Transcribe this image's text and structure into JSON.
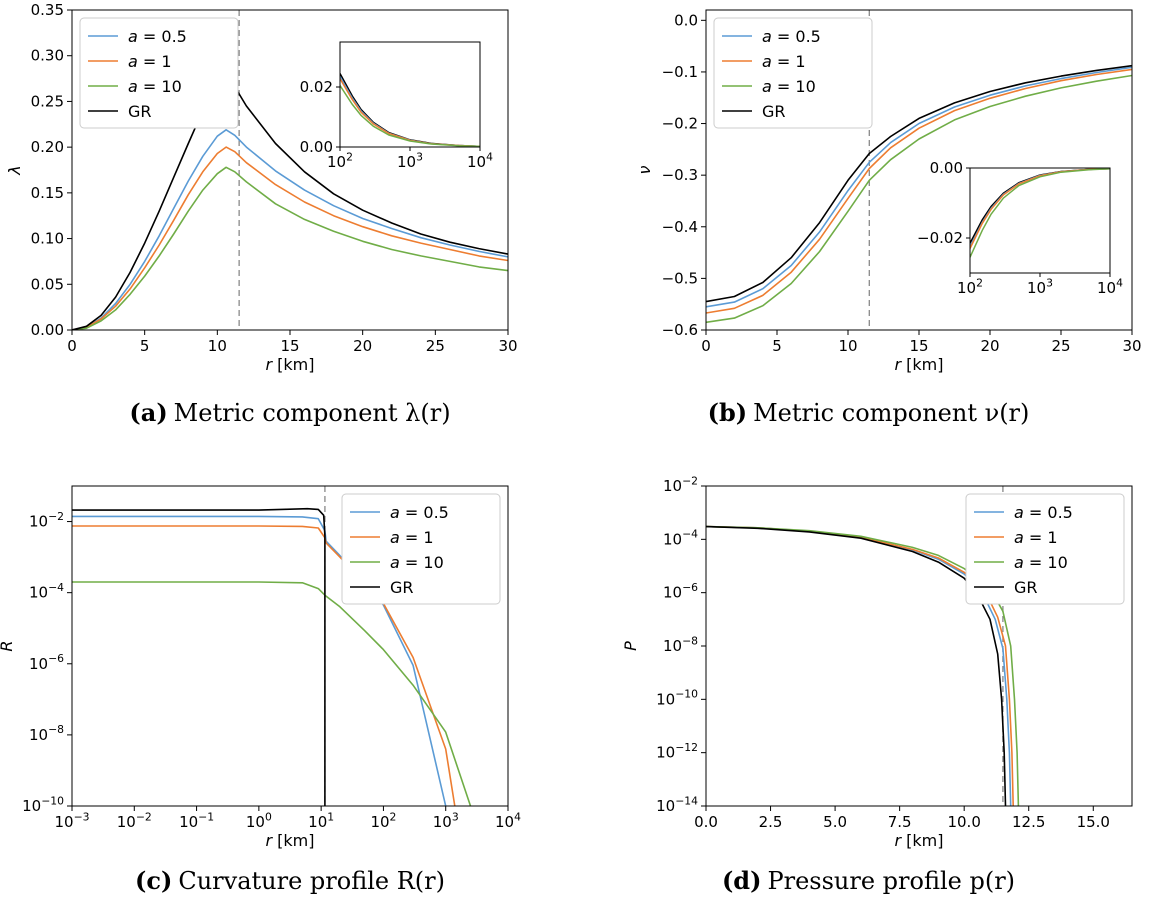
{
  "colors": {
    "a05": "#5b9bd5",
    "a1": "#ed7d31",
    "a10": "#70ad47",
    "gr": "#000000",
    "vline": "#888888"
  },
  "captions": [
    {
      "tag": "(a)",
      "text": "Metric component λ(r)"
    },
    {
      "tag": "(b)",
      "text": "Metric component ν(r)"
    },
    {
      "tag": "(c)",
      "text": "Curvature profile R(r)"
    },
    {
      "tag": "(d)",
      "text": "Pressure profile p(r)"
    }
  ],
  "chart_data": [
    {
      "type": "line",
      "xlabel": "r [km]",
      "ylabel": "λ",
      "xlim": [
        0,
        30
      ],
      "ylim": [
        0,
        0.35
      ],
      "xticks": [
        "0",
        "5",
        "10",
        "15",
        "20",
        "25",
        "30"
      ],
      "yticks": [
        "0.00",
        "0.05",
        "0.10",
        "0.15",
        "0.20",
        "0.25",
        "0.30",
        "0.35"
      ],
      "vline_x": 11.5,
      "legend": "top-left",
      "series": [
        {
          "name": "a = 0.5",
          "color": "a05",
          "x": [
            0,
            1,
            2,
            3,
            4,
            5,
            6,
            7,
            8,
            9,
            10,
            10.6,
            11.2,
            12,
            14,
            16,
            18,
            20,
            22,
            24,
            26,
            28,
            30
          ],
          "y": [
            0,
            0.003,
            0.013,
            0.029,
            0.05,
            0.075,
            0.103,
            0.133,
            0.163,
            0.19,
            0.212,
            0.219,
            0.213,
            0.2,
            0.174,
            0.153,
            0.136,
            0.122,
            0.111,
            0.101,
            0.093,
            0.086,
            0.08
          ]
        },
        {
          "name": "a = 1",
          "color": "a1",
          "x": [
            0,
            1,
            2,
            3,
            4,
            5,
            6,
            7,
            8,
            9,
            10,
            10.6,
            11.2,
            12,
            14,
            16,
            18,
            20,
            22,
            24,
            26,
            28,
            30
          ],
          "y": [
            0,
            0.003,
            0.012,
            0.026,
            0.045,
            0.068,
            0.093,
            0.12,
            0.148,
            0.173,
            0.193,
            0.2,
            0.195,
            0.183,
            0.159,
            0.14,
            0.125,
            0.113,
            0.103,
            0.095,
            0.088,
            0.081,
            0.076
          ]
        },
        {
          "name": "a = 10",
          "color": "a10",
          "x": [
            0,
            1,
            2,
            3,
            4,
            5,
            6,
            7,
            8,
            9,
            10,
            10.6,
            11.2,
            12,
            14,
            16,
            18,
            20,
            22,
            24,
            26,
            28,
            30
          ],
          "y": [
            0,
            0.002,
            0.01,
            0.022,
            0.039,
            0.059,
            0.081,
            0.105,
            0.13,
            0.153,
            0.171,
            0.178,
            0.173,
            0.162,
            0.138,
            0.121,
            0.108,
            0.097,
            0.088,
            0.081,
            0.075,
            0.069,
            0.065
          ]
        },
        {
          "name": "GR",
          "color": "gr",
          "x": [
            0,
            1,
            2,
            3,
            4,
            5,
            6,
            7,
            8,
            9,
            10,
            10.6,
            11.2,
            12,
            14,
            16,
            18,
            20,
            22,
            24,
            26,
            28,
            30
          ],
          "y": [
            0,
            0.004,
            0.016,
            0.036,
            0.063,
            0.095,
            0.13,
            0.167,
            0.204,
            0.24,
            0.269,
            0.277,
            0.266,
            0.245,
            0.204,
            0.173,
            0.149,
            0.131,
            0.117,
            0.105,
            0.096,
            0.089,
            0.083
          ]
        }
      ],
      "inset": {
        "xscale": "log",
        "xlim": [
          100,
          10000
        ],
        "ylim": [
          0,
          0.035
        ],
        "xticks": [
          "10^2",
          "10^3",
          "10^4"
        ],
        "yticks": [
          "0.00",
          "0.02"
        ],
        "series": [
          {
            "color": "gr",
            "x": [
              100,
              150,
              200,
              300,
              500,
              1000,
              2000,
              5000,
              10000
            ],
            "y": [
              0.0245,
              0.017,
              0.0125,
              0.0082,
              0.0048,
              0.0024,
              0.0012,
              0.0005,
              0.0002
            ]
          },
          {
            "color": "a05",
            "x": [
              100,
              150,
              200,
              300,
              500,
              1000,
              2000,
              5000,
              10000
            ],
            "y": [
              0.0235,
              0.0163,
              0.012,
              0.0079,
              0.0046,
              0.0023,
              0.0011,
              0.0005,
              0.0002
            ]
          },
          {
            "color": "a1",
            "x": [
              100,
              150,
              200,
              300,
              500,
              1000,
              2000,
              5000,
              10000
            ],
            "y": [
              0.0228,
              0.0158,
              0.0116,
              0.0077,
              0.0045,
              0.0022,
              0.0011,
              0.0005,
              0.0002
            ]
          },
          {
            "color": "a10",
            "x": [
              100,
              150,
              200,
              300,
              500,
              1000,
              2000,
              5000,
              10000
            ],
            "y": [
              0.0205,
              0.0142,
              0.0105,
              0.0069,
              0.004,
              0.002,
              0.001,
              0.0004,
              0.0002
            ]
          }
        ]
      }
    },
    {
      "type": "line",
      "xlabel": "r [km]",
      "ylabel": "ν",
      "xlim": [
        0,
        30
      ],
      "ylim": [
        -0.6,
        0.02
      ],
      "xticks": [
        "0",
        "5",
        "10",
        "15",
        "20",
        "25",
        "30"
      ],
      "yticks": [
        "−0.6",
        "−0.5",
        "−0.4",
        "−0.3",
        "−0.2",
        "−0.1",
        "0.0"
      ],
      "ytick_values": [
        -0.6,
        -0.5,
        -0.4,
        -0.3,
        -0.2,
        -0.1,
        0.0
      ],
      "vline_x": 11.5,
      "legend": "top-left",
      "series": [
        {
          "name": "a = 0.5",
          "color": "a05",
          "x": [
            0,
            2,
            4,
            6,
            8,
            10,
            11.5,
            13,
            15,
            17.5,
            20,
            22.5,
            25,
            27.5,
            30
          ],
          "y": [
            -0.555,
            -0.546,
            -0.52,
            -0.475,
            -0.41,
            -0.33,
            -0.275,
            -0.237,
            -0.2,
            -0.168,
            -0.145,
            -0.127,
            -0.113,
            -0.101,
            -0.091
          ]
        },
        {
          "name": "a = 1",
          "color": "a1",
          "x": [
            0,
            2,
            4,
            6,
            8,
            10,
            11.5,
            13,
            15,
            17.5,
            20,
            22.5,
            25,
            27.5,
            30
          ],
          "y": [
            -0.567,
            -0.558,
            -0.533,
            -0.488,
            -0.424,
            -0.345,
            -0.287,
            -0.247,
            -0.209,
            -0.175,
            -0.151,
            -0.132,
            -0.117,
            -0.105,
            -0.095
          ]
        },
        {
          "name": "a = 10",
          "color": "a10",
          "x": [
            0,
            2,
            4,
            6,
            8,
            10,
            11.5,
            13,
            15,
            17.5,
            20,
            22.5,
            25,
            27.5,
            30
          ],
          "y": [
            -0.585,
            -0.577,
            -0.553,
            -0.51,
            -0.448,
            -0.37,
            -0.31,
            -0.27,
            -0.23,
            -0.193,
            -0.167,
            -0.147,
            -0.131,
            -0.118,
            -0.107
          ]
        },
        {
          "name": "GR",
          "color": "gr",
          "x": [
            0,
            2,
            4,
            6,
            8,
            10,
            11.5,
            13,
            15,
            17.5,
            20,
            22.5,
            25,
            27.5,
            30
          ],
          "y": [
            -0.545,
            -0.535,
            -0.508,
            -0.46,
            -0.392,
            -0.31,
            -0.258,
            -0.225,
            -0.19,
            -0.16,
            -0.138,
            -0.121,
            -0.108,
            -0.097,
            -0.088
          ]
        }
      ],
      "inset": {
        "xscale": "log",
        "xlim": [
          100,
          10000
        ],
        "ylim": [
          -0.03,
          0
        ],
        "xticks": [
          "10^2",
          "10^3",
          "10^4"
        ],
        "yticks": [
          "0.00",
          "−0.02"
        ],
        "ytick_values": [
          0,
          -0.02
        ],
        "series": [
          {
            "color": "gr",
            "x": [
              100,
              150,
              200,
              300,
              500,
              1000,
              2000,
              5000,
              10000
            ],
            "y": [
              -0.0215,
              -0.0148,
              -0.011,
              -0.0072,
              -0.0042,
              -0.002,
              -0.001,
              -0.0004,
              -0.0002
            ]
          },
          {
            "color": "a05",
            "x": [
              100,
              150,
              200,
              300,
              500,
              1000,
              2000,
              5000,
              10000
            ],
            "y": [
              -0.0225,
              -0.0155,
              -0.0115,
              -0.0075,
              -0.0044,
              -0.0021,
              -0.0011,
              -0.0004,
              -0.0002
            ]
          },
          {
            "color": "a1",
            "x": [
              100,
              150,
              200,
              300,
              500,
              1000,
              2000,
              5000,
              10000
            ],
            "y": [
              -0.023,
              -0.0158,
              -0.0118,
              -0.0077,
              -0.0045,
              -0.0022,
              -0.0011,
              -0.0004,
              -0.0002
            ]
          },
          {
            "color": "a10",
            "x": [
              100,
              150,
              200,
              300,
              500,
              1000,
              2000,
              5000,
              10000
            ],
            "y": [
              -0.0255,
              -0.0178,
              -0.0132,
              -0.0086,
              -0.005,
              -0.0025,
              -0.0012,
              -0.0005,
              -0.0002
            ]
          }
        ]
      }
    },
    {
      "type": "line",
      "xscale": "log",
      "yscale": "log",
      "xlabel": "r [km]",
      "ylabel": "R",
      "xlim": [
        0.001,
        10000
      ],
      "ylim": [
        1e-10,
        0.1
      ],
      "xticks": [
        "10^-3",
        "10^-2",
        "10^-1",
        "10^0",
        "10^1",
        "10^2",
        "10^3",
        "10^4"
      ],
      "yticks": [
        "10^-10",
        "10^-8",
        "10^-6",
        "10^-4",
        "10^-2"
      ],
      "vline_x": 11.5,
      "legend": "top-right",
      "series": [
        {
          "name": "a = 0.5",
          "color": "a05",
          "x": [
            0.001,
            0.01,
            0.1,
            1,
            5,
            9,
            11.5,
            12,
            20,
            50,
            100,
            300,
            1000
          ],
          "y": [
            0.014,
            0.014,
            0.014,
            0.014,
            0.0135,
            0.012,
            0.0055,
            0.0028,
            0.0011,
            0.00018,
            4.5e-05,
            9e-07,
            1e-10
          ]
        },
        {
          "name": "a = 1",
          "color": "a1",
          "x": [
            0.001,
            0.01,
            0.1,
            1,
            5,
            9,
            11.5,
            12,
            20,
            50,
            100,
            300,
            1000,
            1400
          ],
          "y": [
            0.0075,
            0.0075,
            0.0075,
            0.0075,
            0.0073,
            0.0066,
            0.0035,
            0.0025,
            0.001,
            0.00018,
            5e-05,
            1.5e-06,
            4e-09,
            1e-10
          ]
        },
        {
          "name": "a = 10",
          "color": "a10",
          "x": [
            0.001,
            0.01,
            0.1,
            1,
            5,
            9,
            11.5,
            20,
            50,
            100,
            300,
            1000,
            2500
          ],
          "y": [
            0.0002,
            0.0002,
            0.0002,
            0.0002,
            0.00019,
            0.00013,
            8.5e-05,
            4e-05,
            8.5e-06,
            2.5e-06,
            2.5e-07,
            1.2e-08,
            1e-10
          ]
        },
        {
          "name": "GR",
          "color": "gr",
          "x": [
            0.001,
            0.01,
            0.1,
            1,
            6,
            9,
            11,
            11.5,
            11.5
          ],
          "y": [
            0.021,
            0.021,
            0.021,
            0.021,
            0.023,
            0.022,
            0.015,
            0.004,
            1e-10
          ]
        }
      ]
    },
    {
      "type": "line",
      "yscale": "log",
      "xlabel": "r [km]",
      "ylabel": "P",
      "xlim": [
        0,
        16.5
      ],
      "ylim": [
        1e-14,
        0.01
      ],
      "xticks": [
        "0.0",
        "2.5",
        "5.0",
        "7.5",
        "10.0",
        "12.5",
        "15.0"
      ],
      "xtick_values": [
        0,
        2.5,
        5,
        7.5,
        10,
        12.5,
        15
      ],
      "yticks": [
        "10^-14",
        "10^-12",
        "10^-10",
        "10^-8",
        "10^-6",
        "10^-4",
        "10^-2"
      ],
      "vline_x": 11.5,
      "legend": "top-right",
      "series": [
        {
          "name": "a = 0.5",
          "color": "a05",
          "x": [
            0,
            2,
            4,
            6,
            8,
            9,
            10,
            10.7,
            11.2,
            11.5,
            11.65,
            11.75,
            11.8
          ],
          "y": [
            0.0003,
            0.00027,
            0.0002,
            0.00012,
            4e-05,
            1.8e-05,
            5e-06,
            1e-06,
            1e-07,
            8e-09,
            1e-10,
            1e-12,
            1e-14
          ]
        },
        {
          "name": "a = 1",
          "color": "a1",
          "x": [
            0,
            2,
            4,
            6,
            8,
            9,
            10,
            10.8,
            11.3,
            11.6,
            11.75,
            11.85,
            11.9
          ],
          "y": [
            0.0003,
            0.00027,
            0.0002,
            0.00012,
            4.2e-05,
            2e-05,
            5.8e-06,
            1.2e-06,
            1.2e-07,
            1e-08,
            1e-10,
            1e-12,
            1e-14
          ]
        },
        {
          "name": "a = 10",
          "color": "a10",
          "x": [
            0,
            2,
            4,
            6,
            8,
            9,
            10,
            11,
            11.5,
            11.8,
            11.95,
            12.05,
            12.1
          ],
          "y": [
            0.0003,
            0.00027,
            0.00021,
            0.00013,
            5e-05,
            2.5e-05,
            8e-06,
            1.5e-06,
            2e-07,
            1e-08,
            1e-10,
            1e-12,
            1e-14
          ]
        },
        {
          "name": "GR",
          "color": "gr",
          "x": [
            0,
            2,
            4,
            6,
            8,
            9,
            10,
            10.5,
            11,
            11.3,
            11.45,
            11.55,
            11.6
          ],
          "y": [
            0.0003,
            0.00026,
            0.00019,
            0.00011,
            3.5e-05,
            1.4e-05,
            3.5e-06,
            9e-07,
            1e-07,
            5e-09,
            1e-10,
            1e-12,
            1e-14
          ]
        }
      ]
    }
  ]
}
